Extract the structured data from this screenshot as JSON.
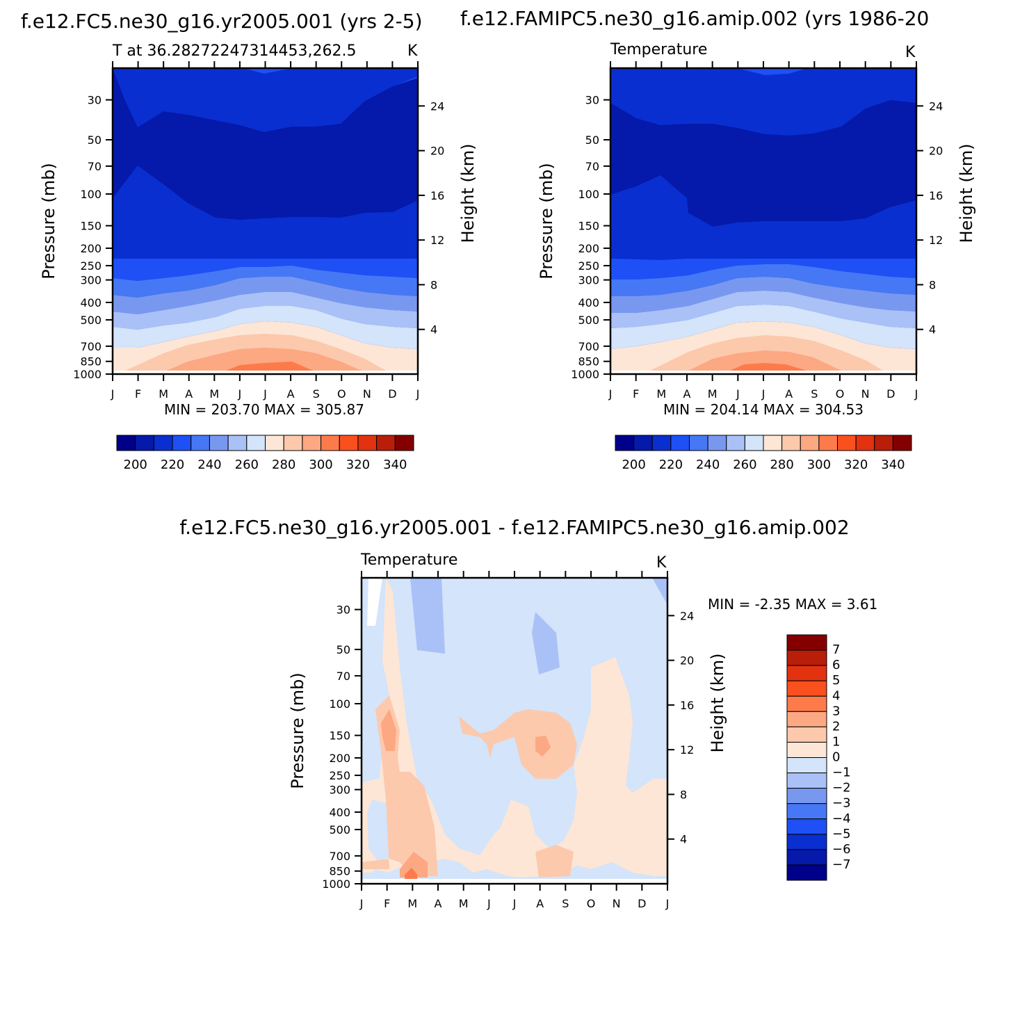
{
  "chart_data": [
    {
      "type": "heatmap",
      "title": "f.e12.FC5.ne30_g16.yr2005.001 (yrs 2-5)",
      "subtitle_left": "T at 36.28272247314453,262.5",
      "subtitle_right": "K",
      "xlabel": "",
      "ylabel": "Pressure (mb)",
      "ylabel_right": "Height (km)",
      "x_ticks": [
        "J",
        "F",
        "M",
        "A",
        "M",
        "J",
        "J",
        "A",
        "S",
        "O",
        "N",
        "D",
        "J"
      ],
      "y_ticks": [
        30,
        50,
        70,
        100,
        150,
        200,
        250,
        300,
        400,
        500,
        700,
        850,
        1000
      ],
      "y_right_ticks": [
        24,
        20,
        16,
        12,
        8,
        4
      ],
      "ylim": [
        1000,
        20
      ],
      "y_scale": "log",
      "min_label": "MIN = 203.70 MAX = 305.87",
      "min": 203.7,
      "max": 305.87,
      "colorbar": {
        "orientation": "horizontal",
        "labels": [
          200,
          220,
          240,
          260,
          280,
          300,
          320,
          340
        ],
        "levels": [
          190,
          200,
          210,
          220,
          230,
          240,
          250,
          260,
          270,
          280,
          290,
          300,
          310,
          320,
          330,
          340,
          350
        ]
      }
    },
    {
      "type": "heatmap",
      "title": "f.e12.FAMIPC5.ne30_g16.amip.002 (yrs 1986-20",
      "subtitle_left": "Temperature",
      "subtitle_right": "K",
      "xlabel": "",
      "ylabel": "Pressure (mb)",
      "ylabel_right": "Height (km)",
      "x_ticks": [
        "J",
        "F",
        "M",
        "A",
        "M",
        "J",
        "J",
        "A",
        "S",
        "O",
        "N",
        "D",
        "J"
      ],
      "y_ticks": [
        30,
        50,
        70,
        100,
        150,
        200,
        250,
        300,
        400,
        500,
        700,
        850,
        1000
      ],
      "y_right_ticks": [
        24,
        20,
        16,
        12,
        8,
        4
      ],
      "ylim": [
        1000,
        20
      ],
      "y_scale": "log",
      "min_label": "MIN = 204.14 MAX = 304.53",
      "min": 204.14,
      "max": 304.53,
      "colorbar": {
        "orientation": "horizontal",
        "labels": [
          200,
          220,
          240,
          260,
          280,
          300,
          320,
          340
        ],
        "levels": [
          190,
          200,
          210,
          220,
          230,
          240,
          250,
          260,
          270,
          280,
          290,
          300,
          310,
          320,
          330,
          340,
          350
        ]
      }
    },
    {
      "type": "heatmap",
      "title": "f.e12.FC5.ne30_g16.yr2005.001 - f.e12.FAMIPC5.ne30_g16.amip.002",
      "subtitle_left": "Temperature",
      "subtitle_right": "K",
      "xlabel": "",
      "ylabel": "Pressure (mb)",
      "ylabel_right": "Height (km)",
      "x_ticks": [
        "J",
        "F",
        "M",
        "A",
        "M",
        "J",
        "J",
        "A",
        "S",
        "O",
        "N",
        "D",
        "J"
      ],
      "y_ticks": [
        30,
        50,
        70,
        100,
        150,
        200,
        250,
        300,
        400,
        500,
        700,
        850,
        1000
      ],
      "y_right_ticks": [
        24,
        20,
        16,
        12,
        8,
        4
      ],
      "ylim": [
        1000,
        20
      ],
      "y_scale": "log",
      "min_label": "MIN = -2.35 MAX = 3.61",
      "min": -2.35,
      "max": 3.61,
      "colorbar": {
        "orientation": "vertical",
        "labels": [
          7,
          6,
          5,
          4,
          3,
          2,
          1,
          0,
          -1,
          -2,
          -3,
          -4,
          -5,
          -6,
          -7
        ],
        "levels": [
          -8,
          -7,
          -6,
          -5,
          -4,
          -3,
          -2,
          -1,
          0,
          1,
          2,
          3,
          4,
          5,
          6,
          7,
          8
        ]
      }
    }
  ],
  "colors": {
    "scale16": [
      "#00008a",
      "#0519aa",
      "#0a2fd0",
      "#1e50f5",
      "#4678f5",
      "#7898f0",
      "#a9c1f7",
      "#d3e4fb",
      "#fde6d5",
      "#fcc9ad",
      "#fca882",
      "#fd7b4b",
      "#fa501e",
      "#e23210",
      "#b91e08",
      "#840000"
    ],
    "diff_scale": [
      "#840000",
      "#b91e08",
      "#e23210",
      "#fa501e",
      "#fd7b4b",
      "#fca882",
      "#fcc9ad",
      "#fde6d5",
      "#d3e4fb",
      "#a9c1f7",
      "#7898f0",
      "#4678f5",
      "#1e50f5",
      "#0a2fd0",
      "#0519aa",
      "#00008a"
    ]
  }
}
